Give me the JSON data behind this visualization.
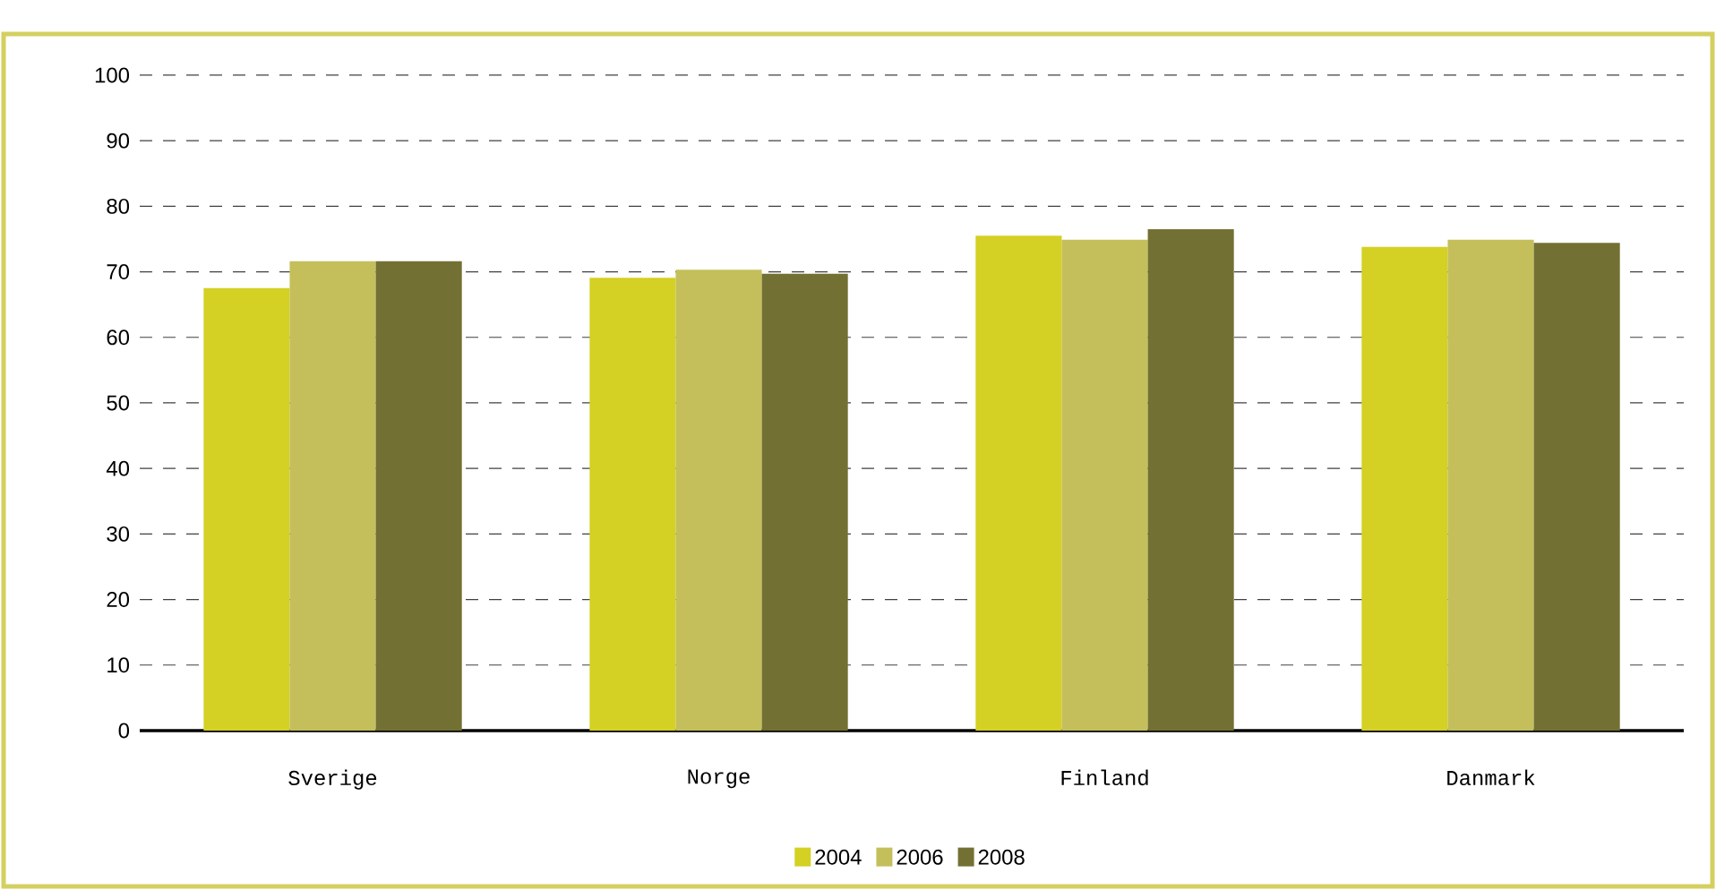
{
  "chart_data": {
    "type": "bar",
    "categories": [
      "Sverige",
      "Norge",
      "Finland",
      "Danmark"
    ],
    "series": [
      {
        "name": "2004",
        "color": "#d4d024",
        "values": [
          67.5,
          69.1,
          75.5,
          73.8
        ]
      },
      {
        "name": "2006",
        "color": "#c4bf5a",
        "values": [
          71.6,
          70.3,
          74.9,
          74.9
        ]
      },
      {
        "name": "2008",
        "color": "#737033",
        "values": [
          71.6,
          69.7,
          76.5,
          74.4
        ]
      }
    ],
    "ylim": [
      0,
      100
    ],
    "yticks": [
      0,
      10,
      20,
      30,
      40,
      50,
      60,
      70,
      80,
      90,
      100
    ],
    "grid": "y",
    "legend": "bottom"
  }
}
